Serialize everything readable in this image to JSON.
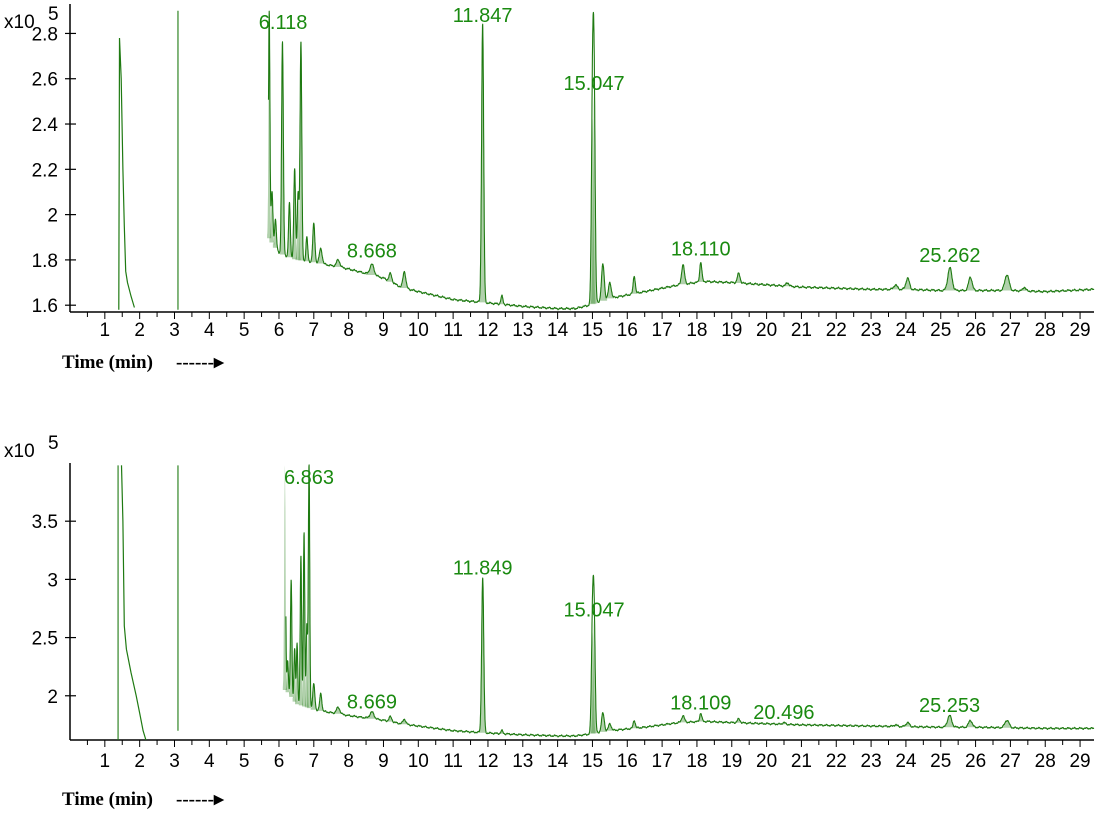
{
  "colors": {
    "trace": "#1f7a12",
    "label": "#1a8a10",
    "axis": "#000000"
  },
  "chart_data": [
    {
      "type": "line",
      "scale_label": "x10",
      "scale_exponent": "5",
      "xlabel": "Time (min)",
      "xlabel_arrow": "------▸",
      "xlim": [
        0,
        29.4
      ],
      "ylim": [
        1.57,
        2.93
      ],
      "x_ticks": [
        "1",
        "2",
        "3",
        "4",
        "5",
        "6",
        "7",
        "8",
        "9",
        "10",
        "11",
        "12",
        "13",
        "14",
        "15",
        "16",
        "17",
        "18",
        "19",
        "20",
        "21",
        "22",
        "23",
        "24",
        "25",
        "26",
        "27",
        "28",
        "29"
      ],
      "y_ticks": [
        {
          "value": 1.6,
          "label": "1.6"
        },
        {
          "value": 1.8,
          "label": "1.8"
        },
        {
          "value": 2.0,
          "label": "2"
        },
        {
          "value": 2.2,
          "label": "2.2"
        },
        {
          "value": 2.4,
          "label": "2.4"
        },
        {
          "value": 2.6,
          "label": "2.6"
        },
        {
          "value": 2.8,
          "label": "2.8"
        }
      ],
      "baseline": [
        [
          5.7,
          1.9
        ],
        [
          6.0,
          1.83
        ],
        [
          6.5,
          1.8
        ],
        [
          7.0,
          1.79
        ],
        [
          8.0,
          1.76
        ],
        [
          9.0,
          1.72
        ],
        [
          9.5,
          1.68
        ],
        [
          10.0,
          1.66
        ],
        [
          11.0,
          1.625
        ],
        [
          12.0,
          1.61
        ],
        [
          13.0,
          1.595
        ],
        [
          14.0,
          1.585
        ],
        [
          14.5,
          1.585
        ],
        [
          14.9,
          1.6
        ],
        [
          15.5,
          1.63
        ],
        [
          16.5,
          1.66
        ],
        [
          17.5,
          1.69
        ],
        [
          18.2,
          1.705
        ],
        [
          19.0,
          1.7
        ],
        [
          20.0,
          1.69
        ],
        [
          21.0,
          1.68
        ],
        [
          22.0,
          1.675
        ],
        [
          23.0,
          1.67
        ],
        [
          24.0,
          1.67
        ],
        [
          25.0,
          1.665
        ],
        [
          26.0,
          1.665
        ],
        [
          27.0,
          1.665
        ],
        [
          28.0,
          1.66
        ],
        [
          29.4,
          1.67
        ]
      ],
      "peaks": [
        {
          "x": 5.72,
          "h": 2.9,
          "w": 0.02
        },
        {
          "x": 5.8,
          "h": 2.1,
          "w": 0.025
        },
        {
          "x": 5.9,
          "h": 1.98,
          "w": 0.025
        },
        {
          "x": 6.1,
          "h": 2.76,
          "w": 0.025
        },
        {
          "x": 6.3,
          "h": 2.05,
          "w": 0.025
        },
        {
          "x": 6.45,
          "h": 2.2,
          "w": 0.025
        },
        {
          "x": 6.55,
          "h": 2.1,
          "w": 0.025
        },
        {
          "x": 6.63,
          "h": 2.76,
          "w": 0.025
        },
        {
          "x": 6.8,
          "h": 1.9,
          "w": 0.025
        },
        {
          "x": 7.0,
          "h": 1.96,
          "w": 0.03
        },
        {
          "x": 7.2,
          "h": 1.85,
          "w": 0.04
        },
        {
          "x": 7.7,
          "h": 1.8,
          "w": 0.05
        },
        {
          "x": 8.67,
          "h": 1.78,
          "w": 0.06
        },
        {
          "x": 9.2,
          "h": 1.74,
          "w": 0.04
        },
        {
          "x": 9.6,
          "h": 1.75,
          "w": 0.04
        },
        {
          "x": 11.847,
          "h": 2.84,
          "w": 0.03
        },
        {
          "x": 12.4,
          "h": 1.64,
          "w": 0.03
        },
        {
          "x": 15.0,
          "h": 2.43,
          "w": 0.03
        },
        {
          "x": 15.047,
          "h": 2.53,
          "w": 0.03
        },
        {
          "x": 15.3,
          "h": 1.78,
          "w": 0.04
        },
        {
          "x": 15.5,
          "h": 1.7,
          "w": 0.04
        },
        {
          "x": 16.2,
          "h": 1.73,
          "w": 0.03
        },
        {
          "x": 17.6,
          "h": 1.78,
          "w": 0.04
        },
        {
          "x": 18.11,
          "h": 1.79,
          "w": 0.03
        },
        {
          "x": 19.2,
          "h": 1.74,
          "w": 0.04
        },
        {
          "x": 20.6,
          "h": 1.7,
          "w": 0.04
        },
        {
          "x": 23.7,
          "h": 1.69,
          "w": 0.05
        },
        {
          "x": 24.05,
          "h": 1.72,
          "w": 0.05
        },
        {
          "x": 25.262,
          "h": 1.765,
          "w": 0.06
        },
        {
          "x": 25.85,
          "h": 1.725,
          "w": 0.05
        },
        {
          "x": 26.9,
          "h": 1.735,
          "w": 0.06
        },
        {
          "x": 27.4,
          "h": 1.68,
          "w": 0.04
        }
      ],
      "solvent_lines": [
        {
          "x": 1.38,
          "y1": 1.57,
          "y2": 1.57
        },
        {
          "x": 3.1,
          "y1": 1.58,
          "y2": 2.9
        }
      ],
      "solvent_curve": [
        [
          1.4,
          1.58
        ],
        [
          1.42,
          2.78
        ],
        [
          1.47,
          2.6
        ],
        [
          1.52,
          2.2
        ],
        [
          1.56,
          1.95
        ],
        [
          1.6,
          1.75
        ],
        [
          1.65,
          1.7
        ],
        [
          1.75,
          1.64
        ],
        [
          1.85,
          1.59
        ]
      ],
      "labels": [
        {
          "text": "6.118",
          "x": 6.118,
          "y": 2.82
        },
        {
          "text": "11.847",
          "x": 11.847,
          "y": 2.85
        },
        {
          "text": "15.047",
          "x": 15.047,
          "y": 2.55
        },
        {
          "text": "8.668",
          "x": 8.668,
          "y": 1.81
        },
        {
          "text": "18.110",
          "x": 18.11,
          "y": 1.82
        },
        {
          "text": "25.262",
          "x": 25.262,
          "y": 1.79
        }
      ]
    },
    {
      "type": "line",
      "scale_label": "x10",
      "scale_exponent": "5",
      "xlabel": "Time (min)",
      "xlabel_arrow": "------▸",
      "xlim": [
        0,
        29.4
      ],
      "ylim": [
        1.62,
        4.0
      ],
      "x_ticks": [
        "1",
        "2",
        "3",
        "4",
        "5",
        "6",
        "7",
        "8",
        "9",
        "10",
        "11",
        "12",
        "13",
        "14",
        "15",
        "16",
        "17",
        "18",
        "19",
        "20",
        "21",
        "22",
        "23",
        "24",
        "25",
        "26",
        "27",
        "28",
        "29"
      ],
      "y_ticks": [
        {
          "value": 2.0,
          "label": "2"
        },
        {
          "value": 2.5,
          "label": "2.5"
        },
        {
          "value": 3.0,
          "label": "3"
        },
        {
          "value": 3.5,
          "label": "3.5"
        }
      ],
      "baseline": [
        [
          6.2,
          2.05
        ],
        [
          6.5,
          1.93
        ],
        [
          7.0,
          1.88
        ],
        [
          8.0,
          1.83
        ],
        [
          9.0,
          1.79
        ],
        [
          9.5,
          1.76
        ],
        [
          10.0,
          1.74
        ],
        [
          11.0,
          1.7
        ],
        [
          12.0,
          1.68
        ],
        [
          13.0,
          1.665
        ],
        [
          14.0,
          1.655
        ],
        [
          14.5,
          1.655
        ],
        [
          14.9,
          1.67
        ],
        [
          15.5,
          1.7
        ],
        [
          16.5,
          1.73
        ],
        [
          17.5,
          1.77
        ],
        [
          18.2,
          1.78
        ],
        [
          19.0,
          1.77
        ],
        [
          20.0,
          1.76
        ],
        [
          21.0,
          1.75
        ],
        [
          22.0,
          1.745
        ],
        [
          23.0,
          1.74
        ],
        [
          24.0,
          1.735
        ],
        [
          25.0,
          1.73
        ],
        [
          26.0,
          1.73
        ],
        [
          27.0,
          1.725
        ],
        [
          28.0,
          1.72
        ],
        [
          29.4,
          1.72
        ]
      ],
      "peaks": [
        {
          "x": 6.17,
          "h": 3.98,
          "w": 0.02
        },
        {
          "x": 6.25,
          "h": 2.3,
          "w": 0.02
        },
        {
          "x": 6.35,
          "h": 3.0,
          "w": 0.02
        },
        {
          "x": 6.45,
          "h": 2.4,
          "w": 0.02
        },
        {
          "x": 6.52,
          "h": 2.45,
          "w": 0.02
        },
        {
          "x": 6.63,
          "h": 3.2,
          "w": 0.02
        },
        {
          "x": 6.72,
          "h": 3.4,
          "w": 0.02
        },
        {
          "x": 6.8,
          "h": 2.6,
          "w": 0.02
        },
        {
          "x": 6.863,
          "h": 3.98,
          "w": 0.02
        },
        {
          "x": 7.0,
          "h": 2.1,
          "w": 0.03
        },
        {
          "x": 7.2,
          "h": 2.02,
          "w": 0.03
        },
        {
          "x": 7.7,
          "h": 1.9,
          "w": 0.05
        },
        {
          "x": 8.669,
          "h": 1.86,
          "w": 0.06
        },
        {
          "x": 9.2,
          "h": 1.82,
          "w": 0.04
        },
        {
          "x": 9.6,
          "h": 1.8,
          "w": 0.04
        },
        {
          "x": 11.849,
          "h": 3.01,
          "w": 0.03
        },
        {
          "x": 12.4,
          "h": 1.7,
          "w": 0.03
        },
        {
          "x": 15.0,
          "h": 2.55,
          "w": 0.03
        },
        {
          "x": 15.047,
          "h": 2.65,
          "w": 0.03
        },
        {
          "x": 15.3,
          "h": 1.85,
          "w": 0.04
        },
        {
          "x": 15.5,
          "h": 1.76,
          "w": 0.04
        },
        {
          "x": 16.2,
          "h": 1.79,
          "w": 0.03
        },
        {
          "x": 17.6,
          "h": 1.83,
          "w": 0.04
        },
        {
          "x": 18.109,
          "h": 1.85,
          "w": 0.03
        },
        {
          "x": 19.2,
          "h": 1.8,
          "w": 0.04
        },
        {
          "x": 20.496,
          "h": 1.77,
          "w": 0.04
        },
        {
          "x": 23.7,
          "h": 1.75,
          "w": 0.05
        },
        {
          "x": 24.05,
          "h": 1.77,
          "w": 0.05
        },
        {
          "x": 25.253,
          "h": 1.83,
          "w": 0.06
        },
        {
          "x": 25.85,
          "h": 1.79,
          "w": 0.05
        },
        {
          "x": 26.9,
          "h": 1.79,
          "w": 0.06
        }
      ],
      "solvent_lines": [
        {
          "x": 1.38,
          "y1": 1.62,
          "y2": 3.98
        },
        {
          "x": 3.1,
          "y1": 1.7,
          "y2": 3.98
        }
      ],
      "solvent_curve": [
        [
          1.48,
          3.98
        ],
        [
          1.52,
          3.5
        ],
        [
          1.56,
          2.6
        ],
        [
          1.62,
          2.4
        ],
        [
          1.75,
          2.2
        ],
        [
          1.9,
          2.0
        ],
        [
          2.0,
          1.85
        ],
        [
          2.1,
          1.7
        ],
        [
          2.18,
          1.62
        ]
      ],
      "labels": [
        {
          "text": "6.863",
          "x": 6.863,
          "y": 3.82
        },
        {
          "text": "11.849",
          "x": 11.849,
          "y": 3.04
        },
        {
          "text": "15.047",
          "x": 15.047,
          "y": 2.68
        },
        {
          "text": "8.669",
          "x": 8.669,
          "y": 1.89
        },
        {
          "text": "18.109",
          "x": 18.109,
          "y": 1.88
        },
        {
          "text": "20.496",
          "x": 20.496,
          "y": 1.8
        },
        {
          "text": "25.253",
          "x": 25.253,
          "y": 1.86
        }
      ]
    }
  ]
}
